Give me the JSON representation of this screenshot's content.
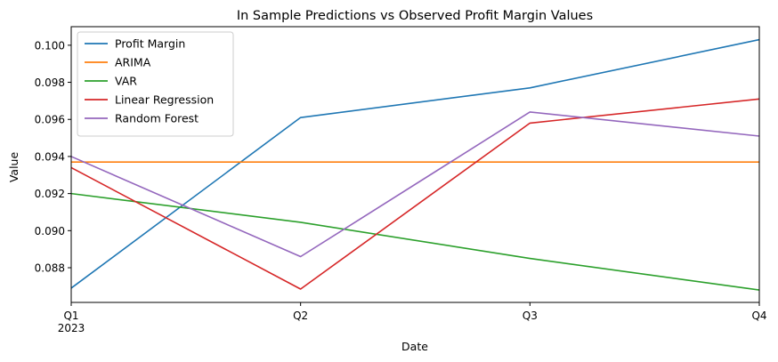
{
  "chart_data": {
    "type": "line",
    "title": "In Sample Predictions vs Observed Profit Margin Values",
    "xlabel": "Date",
    "ylabel": "Value",
    "categories": [
      "Q1",
      "Q2",
      "Q3",
      "Q4"
    ],
    "x_sublabel": "2023",
    "ylim": [
      0.08613,
      0.101
    ],
    "yticks": [
      "0.088",
      "0.090",
      "0.092",
      "0.094",
      "0.096",
      "0.098",
      "0.100"
    ],
    "grid": false,
    "legend_position": "top-left",
    "series": [
      {
        "name": "Profit Margin",
        "color": "#1f77b4",
        "values": [
          0.0869,
          0.0961,
          0.0977,
          0.1003
        ]
      },
      {
        "name": "ARIMA",
        "color": "#ff7f0e",
        "values": [
          0.0937,
          0.0937,
          0.0937,
          0.0937
        ]
      },
      {
        "name": "VAR",
        "color": "#2ca02c",
        "values": [
          0.092,
          0.09045,
          0.0885,
          0.0868
        ]
      },
      {
        "name": "Linear Regression",
        "color": "#d62728",
        "values": [
          0.0934,
          0.08685,
          0.0958,
          0.0971
        ]
      },
      {
        "name": "Random Forest",
        "color": "#9467bd",
        "values": [
          0.094,
          0.0886,
          0.0964,
          0.0951
        ]
      }
    ]
  }
}
